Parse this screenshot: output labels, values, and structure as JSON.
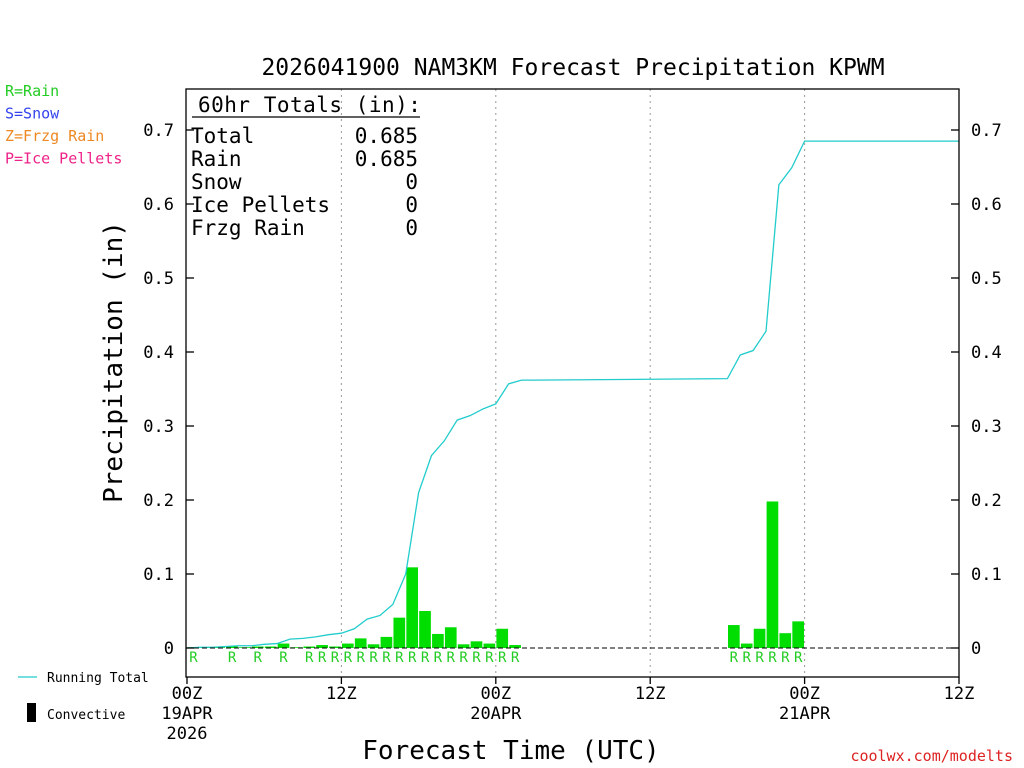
{
  "chart_data": {
    "type": "bar",
    "title": "2026041900 NAM3KM Forecast Precipitation KPWM",
    "xlabel": "Forecast Time (UTC)",
    "ylabel": "Precipitation (in)",
    "ylim": [
      -0.04,
      0.76
    ],
    "y_ticks": [
      "0",
      "0.1",
      "0.2",
      "0.3",
      "0.4",
      "0.5",
      "0.6",
      "0.7"
    ],
    "y_tick_values": [
      0,
      0.1,
      0.2,
      0.3,
      0.4,
      0.5,
      0.6,
      0.7
    ],
    "xlim_hours": [
      0,
      60
    ],
    "x_ticks": [
      {
        "hour": 0,
        "label": "00Z",
        "sub": "19APR",
        "sub2": "2026"
      },
      {
        "hour": 12,
        "label": "12Z",
        "sub": "",
        "sub2": ""
      },
      {
        "hour": 24,
        "label": "00Z",
        "sub": "20APR",
        "sub2": ""
      },
      {
        "hour": 36,
        "label": "12Z",
        "sub": "",
        "sub2": ""
      },
      {
        "hour": 48,
        "label": "00Z",
        "sub": "21APR",
        "sub2": ""
      },
      {
        "hour": 60,
        "label": "12Z",
        "sub": "",
        "sub2": ""
      }
    ],
    "grid": "vertical-dotted",
    "legend_position": "bottom-left",
    "type_legend": [
      {
        "text": "R=Rain",
        "color": "#22cc22"
      },
      {
        "text": "S=Snow",
        "color": "#3344ee"
      },
      {
        "text": "Z=Frzg Rain",
        "color": "#ee8822"
      },
      {
        "text": "P=Ice Pellets",
        "color": "#ee2288"
      }
    ],
    "series_legend": {
      "running_total": "Running Total",
      "convective": "Convective"
    },
    "totals": {
      "header": "60hr Totals (in):",
      "rows": [
        {
          "label": "Total",
          "value": "0.685"
        },
        {
          "label": "Rain",
          "value": "0.685"
        },
        {
          "label": "Snow",
          "value": "0"
        },
        {
          "label": "Ice Pellets",
          "value": "0"
        },
        {
          "label": "Frzg Rain",
          "value": "0"
        }
      ]
    },
    "bars": [
      {
        "hour": 1,
        "value": 0.001
      },
      {
        "hour": 2,
        "value": 0.001
      },
      {
        "hour": 3,
        "value": 0.001
      },
      {
        "hour": 4,
        "value": 0.002
      },
      {
        "hour": 5,
        "value": 0.001
      },
      {
        "hour": 6,
        "value": 0.002
      },
      {
        "hour": 7,
        "value": 0.002
      },
      {
        "hour": 8,
        "value": 0.006
      },
      {
        "hour": 9,
        "value": 0.001
      },
      {
        "hour": 10,
        "value": 0.002
      },
      {
        "hour": 11,
        "value": 0.004
      },
      {
        "hour": 12,
        "value": 0.002
      },
      {
        "hour": 13,
        "value": 0.006
      },
      {
        "hour": 14,
        "value": 0.013
      },
      {
        "hour": 15,
        "value": 0.005
      },
      {
        "hour": 16,
        "value": 0.015
      },
      {
        "hour": 17,
        "value": 0.041
      },
      {
        "hour": 18,
        "value": 0.109
      },
      {
        "hour": 19,
        "value": 0.05
      },
      {
        "hour": 20,
        "value": 0.019
      },
      {
        "hour": 21,
        "value": 0.028
      },
      {
        "hour": 22,
        "value": 0.005
      },
      {
        "hour": 23,
        "value": 0.009
      },
      {
        "hour": 24,
        "value": 0.006
      },
      {
        "hour": 25,
        "value": 0.026
      },
      {
        "hour": 26,
        "value": 0.004
      },
      {
        "hour": 43,
        "value": 0.031
      },
      {
        "hour": 44,
        "value": 0.006
      },
      {
        "hour": 45,
        "value": 0.026
      },
      {
        "hour": 46,
        "value": 0.198
      },
      {
        "hour": 47,
        "value": 0.02
      },
      {
        "hour": 48,
        "value": 0.036
      }
    ],
    "running_total": {
      "x": [
        0,
        1,
        2,
        3,
        4,
        5,
        6,
        7,
        8,
        9,
        10,
        11,
        12,
        13,
        14,
        15,
        16,
        17,
        18,
        19,
        20,
        21,
        22,
        23,
        24,
        25,
        26,
        27,
        42,
        43,
        44,
        45,
        46,
        47,
        48,
        60
      ],
      "y": [
        0,
        0.001,
        0.001,
        0.002,
        0.003,
        0.003,
        0.005,
        0.006,
        0.012,
        0.013,
        0.015,
        0.018,
        0.02,
        0.026,
        0.039,
        0.044,
        0.059,
        0.1,
        0.21,
        0.26,
        0.28,
        0.308,
        0.314,
        0.323,
        0.33,
        0.357,
        0.362,
        0.362,
        0.364,
        0.396,
        0.402,
        0.428,
        0.626,
        0.649,
        0.685,
        0.685
      ]
    },
    "ptype_markers": {
      "symbol": "R",
      "hours": [
        1,
        4,
        6,
        8,
        10,
        11,
        12,
        13,
        14,
        15,
        16,
        17,
        18,
        19,
        20,
        21,
        22,
        23,
        24,
        25,
        26,
        43,
        44,
        45,
        46,
        47,
        48
      ]
    },
    "colors": {
      "bars": "#00dd00",
      "running_total": "#22cccc",
      "rain": "#22cc22",
      "credit": "#dd2222",
      "grid": "#999999"
    },
    "credit": "coolwx.com/modelts"
  }
}
